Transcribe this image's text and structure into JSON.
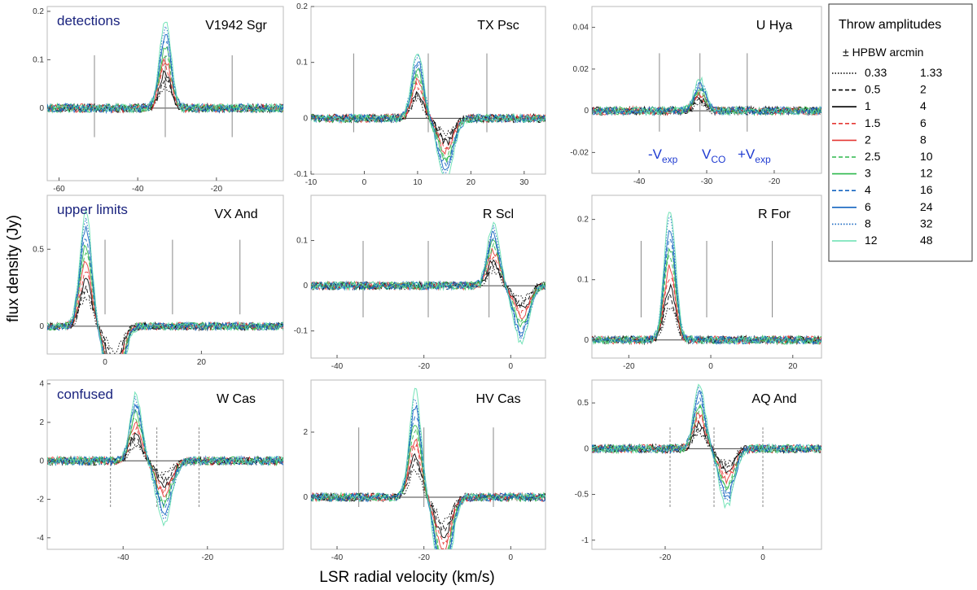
{
  "figure": {
    "xlabel": "LSR radial  velocity  (km/s)",
    "ylabel": "flux density  (Jy)",
    "annotations": {
      "vmexp": "-V",
      "vco": "V",
      "vpexp": "+V",
      "sub_exp": "exp",
      "sub_co": "CO"
    }
  },
  "legend": {
    "title": "Throw amplitudes",
    "header": "± HPBW arcmin",
    "entries": [
      {
        "hpbw": "0.33",
        "arcmin": "1.33",
        "color": "#000000",
        "style": "dotted"
      },
      {
        "hpbw": "0.5",
        "arcmin": "2",
        "color": "#000000",
        "style": "dashed"
      },
      {
        "hpbw": "1",
        "arcmin": "4",
        "color": "#000000",
        "style": "solid"
      },
      {
        "hpbw": "1.5",
        "arcmin": "6",
        "color": "#e53935",
        "style": "dashed"
      },
      {
        "hpbw": "2",
        "arcmin": "8",
        "color": "#e53935",
        "style": "solid"
      },
      {
        "hpbw": "2.5",
        "arcmin": "10",
        "color": "#2db84d",
        "style": "dashed"
      },
      {
        "hpbw": "3",
        "arcmin": "12",
        "color": "#2db84d",
        "style": "solid"
      },
      {
        "hpbw": "4",
        "arcmin": "16",
        "color": "#1565c0",
        "style": "dashed"
      },
      {
        "hpbw": "6",
        "arcmin": "24",
        "color": "#1565c0",
        "style": "solid"
      },
      {
        "hpbw": "8",
        "arcmin": "32",
        "color": "#1565c0",
        "style": "dotted"
      },
      {
        "hpbw": "12",
        "arcmin": "48",
        "color": "#66e0b0",
        "style": "solid"
      }
    ]
  },
  "chart_data": [
    {
      "type": "line",
      "name": "V1942 Sgr",
      "category": "detections",
      "xlim": [
        -63,
        -3
      ],
      "ylim": [
        -0.15,
        0.21
      ],
      "xticks": [
        -60,
        -40,
        -20
      ],
      "yticks": [
        0,
        0.1,
        0.2
      ],
      "ytick_labels": [
        "0",
        "0.1",
        "0.2"
      ],
      "vlines": [
        -51,
        -33,
        -16
      ],
      "vline_style": "solid",
      "peak_v": -33,
      "peak_jy": 0.18
    },
    {
      "type": "line",
      "name": "TX Psc",
      "category": "",
      "xlim": [
        -10,
        34
      ],
      "ylim": [
        -0.1,
        0.2
      ],
      "xticks": [
        -10,
        0,
        10,
        20,
        30
      ],
      "yticks": [
        -0.1,
        0,
        0.1,
        0.2
      ],
      "ytick_labels": [
        "-0.1",
        "0",
        "0.1",
        "0.2"
      ],
      "vlines": [
        -2,
        12,
        23
      ],
      "vline_style": "solid",
      "peak_v": 10,
      "peak_jy": 0.12
    },
    {
      "type": "line",
      "name": "U Hya",
      "category": "",
      "xlim": [
        -47,
        -13
      ],
      "ylim": [
        -0.03,
        0.05
      ],
      "xticks": [
        -40,
        -30,
        -20
      ],
      "yticks": [
        -0.02,
        0,
        0.02,
        0.04
      ],
      "ytick_labels": [
        "-0.02",
        "0",
        "0.02",
        "0.04"
      ],
      "vlines": [
        -37,
        -31,
        -24
      ],
      "vline_style": "solid",
      "peak_v": -31,
      "peak_jy": 0.015
    },
    {
      "type": "line",
      "name": "VX And",
      "category": "upper limits",
      "xlim": [
        -12,
        37
      ],
      "ylim": [
        -0.18,
        0.85
      ],
      "xticks": [
        0,
        20
      ],
      "yticks": [
        0,
        0.5
      ],
      "ytick_labels": [
        "0",
        "0.5"
      ],
      "vlines": [
        0,
        14,
        28
      ],
      "vline_style": "solid",
      "peak_v": -4,
      "peak_jy": 0.75
    },
    {
      "type": "line",
      "name": "R Scl",
      "category": "",
      "xlim": [
        -46,
        8
      ],
      "ylim": [
        -0.16,
        0.2
      ],
      "xticks": [
        -40,
        -20,
        0
      ],
      "yticks": [
        -0.1,
        0,
        0.1
      ],
      "ytick_labels": [
        "-0.1",
        "0",
        "0.1"
      ],
      "vlines": [
        -34,
        -19,
        -5
      ],
      "vline_style": "solid",
      "peak_v": -4,
      "peak_jy": 0.14
    },
    {
      "type": "line",
      "name": "R For",
      "category": "",
      "xlim": [
        -29,
        27
      ],
      "ylim": [
        -0.03,
        0.24
      ],
      "xticks": [
        -20,
        0,
        20
      ],
      "yticks": [
        0,
        0.1,
        0.2
      ],
      "ytick_labels": [
        "0",
        "0.1",
        "0.2"
      ],
      "vlines": [
        -17,
        -1,
        15
      ],
      "vline_style": "solid",
      "peak_v": -10,
      "peak_jy": 0.22
    },
    {
      "type": "line",
      "name": "W Cas",
      "category": "confused",
      "xlim": [
        -58,
        -2
      ],
      "ylim": [
        -4.6,
        4.2
      ],
      "xticks": [
        -40,
        -20
      ],
      "yticks": [
        -4,
        -2,
        0,
        2,
        4
      ],
      "ytick_labels": [
        "-4",
        "-2",
        "0",
        "2",
        "4"
      ],
      "vlines": [
        -43,
        -32,
        -22
      ],
      "vline_style": "dashed",
      "peak_v": -37,
      "peak_jy": 3.5
    },
    {
      "type": "line",
      "name": "HV Cas",
      "category": "",
      "xlim": [
        -46,
        8
      ],
      "ylim": [
        -1.6,
        3.6
      ],
      "xticks": [
        -40,
        -20,
        0
      ],
      "yticks": [
        0,
        2
      ],
      "ytick_labels": [
        "0",
        "2"
      ],
      "vlines": [
        -35,
        -20,
        -4
      ],
      "vline_style": "solid",
      "peak_v": -22,
      "peak_jy": 3.3
    },
    {
      "type": "line",
      "name": "AQ And",
      "category": "",
      "xlim": [
        -35,
        12
      ],
      "ylim": [
        -1.1,
        0.75
      ],
      "xticks": [
        -20,
        0
      ],
      "yticks": [
        -1,
        -0.5,
        0,
        0.5
      ],
      "ytick_labels": [
        "-1",
        "-0.5",
        "0",
        "0.5"
      ],
      "vlines": [
        -19,
        -10,
        0
      ],
      "vline_style": "dashed",
      "peak_v": -13,
      "peak_jy": 0.7
    }
  ]
}
